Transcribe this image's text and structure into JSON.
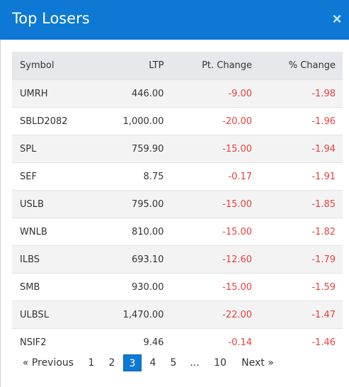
{
  "modal": {
    "title": "Top Losers",
    "close_glyph": "×"
  },
  "table": {
    "headers": [
      "Symbol",
      "LTP",
      "Pt. Change",
      "% Change"
    ],
    "rows": [
      [
        "UMRH",
        "446.00",
        "-9.00",
        "-1.98"
      ],
      [
        "SBLD2082",
        "1,000.00",
        "-20.00",
        "-1.96"
      ],
      [
        "SPL",
        "759.90",
        "-15.00",
        "-1.94"
      ],
      [
        "SEF",
        "8.75",
        "-0.17",
        "-1.91"
      ],
      [
        "USLB",
        "795.00",
        "-15.00",
        "-1.85"
      ],
      [
        "WNLB",
        "810.00",
        "-15.00",
        "-1.82"
      ],
      [
        "ILBS",
        "693.10",
        "-12.60",
        "-1.79"
      ],
      [
        "SMB",
        "930.00",
        "-15.00",
        "-1.59"
      ],
      [
        "ULBSL",
        "1,470.00",
        "-22.00",
        "-1.47"
      ],
      [
        "NSIF2",
        "9.46",
        "-0.14",
        "-1.46"
      ]
    ]
  },
  "pagination": {
    "prev": "«  Previous",
    "pages": [
      "1",
      "2",
      "3",
      "4",
      "5",
      "...",
      "10"
    ],
    "next": "Next  »",
    "current": "3"
  },
  "colors": {
    "accent": "#0e79d4",
    "negative": "#e8413f"
  }
}
